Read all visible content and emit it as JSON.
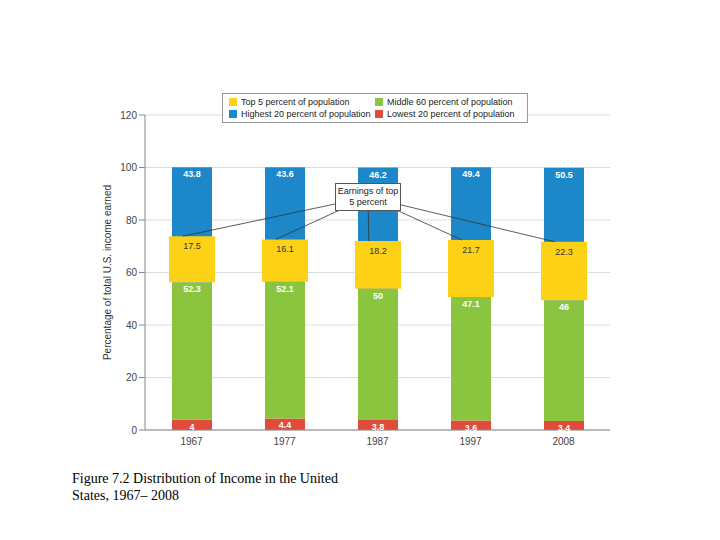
{
  "chart_data": {
    "type": "bar",
    "title": "Figure 7.2 Distribution of Income in the United States, 1967– 2008",
    "y_label": "Percentage of total U.S. income earned",
    "annotation": "Earnings of top 5 percent",
    "categories": [
      "1967",
      "1977",
      "1987",
      "1997",
      "2008"
    ],
    "series": [
      {
        "name": "Lowest 20 percent of population",
        "color": "#e04b3a",
        "values": [
          4.0,
          4.4,
          3.8,
          3.6,
          3.4
        ]
      },
      {
        "name": "Middle 60 percent of population",
        "color": "#8bc53f",
        "values": [
          52.3,
          52.1,
          50.0,
          47.1,
          46.0
        ]
      },
      {
        "name": "Highest 20 percent of population",
        "color": "#1c87c9",
        "values": [
          43.8,
          43.6,
          46.2,
          49.4,
          50.5
        ]
      }
    ],
    "overlay_series": {
      "name": "Top 5 percent of population",
      "color": "#fcd116",
      "values": [
        17.5,
        16.1,
        18.2,
        21.7,
        22.3
      ]
    },
    "stacked": true,
    "data_labels": true,
    "grid": true,
    "legend": "top",
    "ylim": [
      0,
      120
    ],
    "yticks": [
      0,
      20,
      40,
      60,
      80,
      100,
      120
    ]
  }
}
